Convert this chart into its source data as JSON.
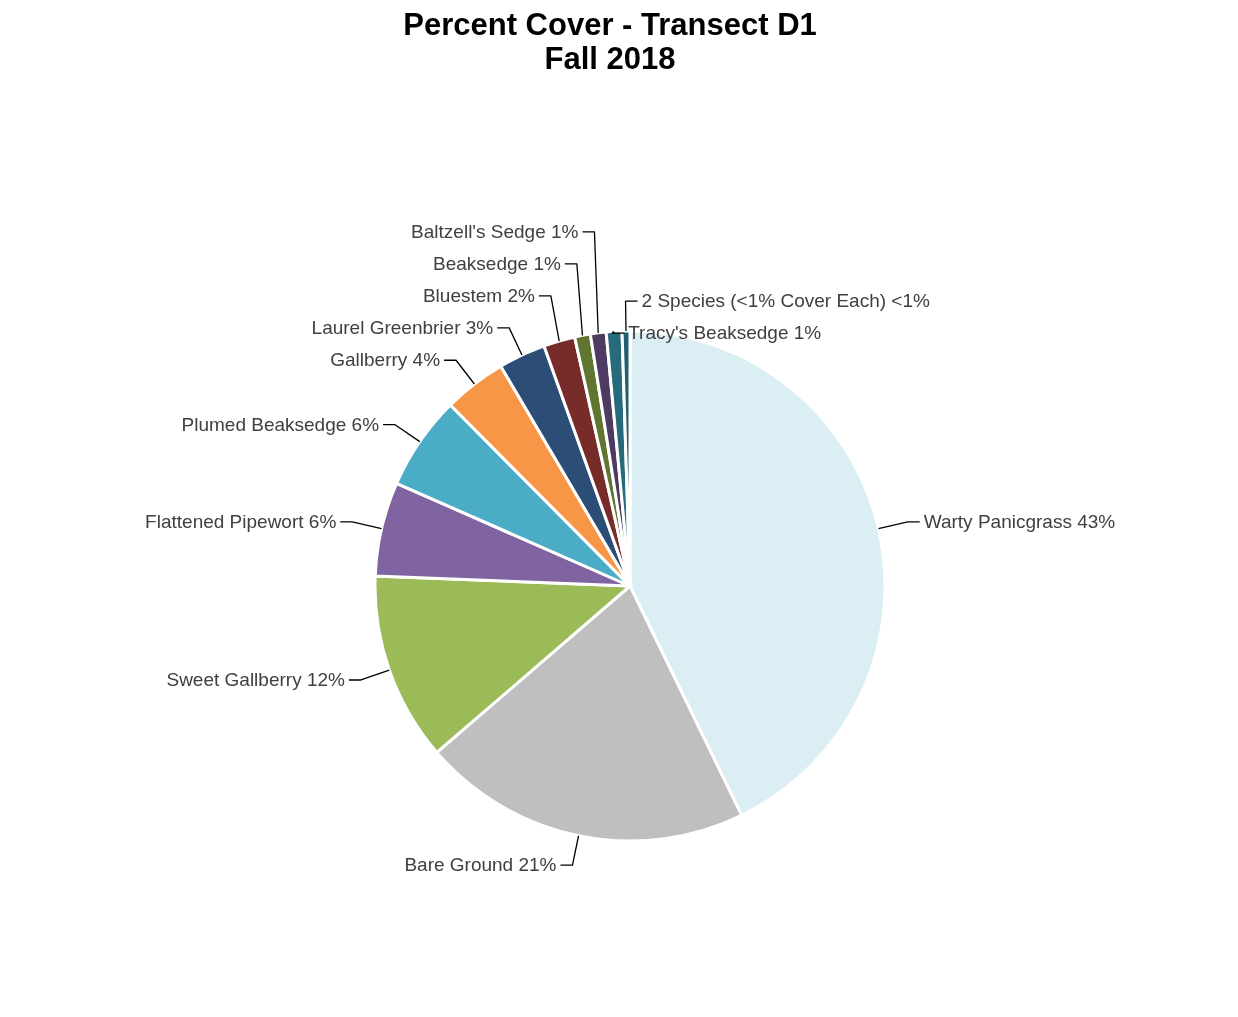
{
  "chart_data": {
    "type": "pie",
    "title": "Percent Cover - Transect D1",
    "subtitle": "Fall 2018",
    "categories": [
      "Warty Panicgrass",
      "Bare Ground",
      "Sweet Gallberry",
      "Flattened Pipewort",
      "Plumed Beaksedge",
      "Gallberry",
      "Laurel Greenbrier",
      "Bluestem",
      "Beaksedge",
      "Baltzell's Sedge",
      "Tracy's Beaksedge",
      "2 Species (<1% Cover Each)"
    ],
    "values": [
      43,
      21,
      12,
      6,
      6,
      4,
      3,
      2,
      1,
      1,
      1,
      0.5
    ],
    "value_labels": [
      "43%",
      "21%",
      "12%",
      "6%",
      "6%",
      "4%",
      "3%",
      "2%",
      "1%",
      "1%",
      "1%",
      "<1%"
    ],
    "colors": [
      "#dbeef4",
      "#bfbfbf",
      "#9bbb59",
      "#8064a2",
      "#4bacc6",
      "#f79646",
      "#2c4d75",
      "#772c2a",
      "#5f7530",
      "#4d3b62",
      "#276a7c",
      "#1f5f6e"
    ]
  }
}
